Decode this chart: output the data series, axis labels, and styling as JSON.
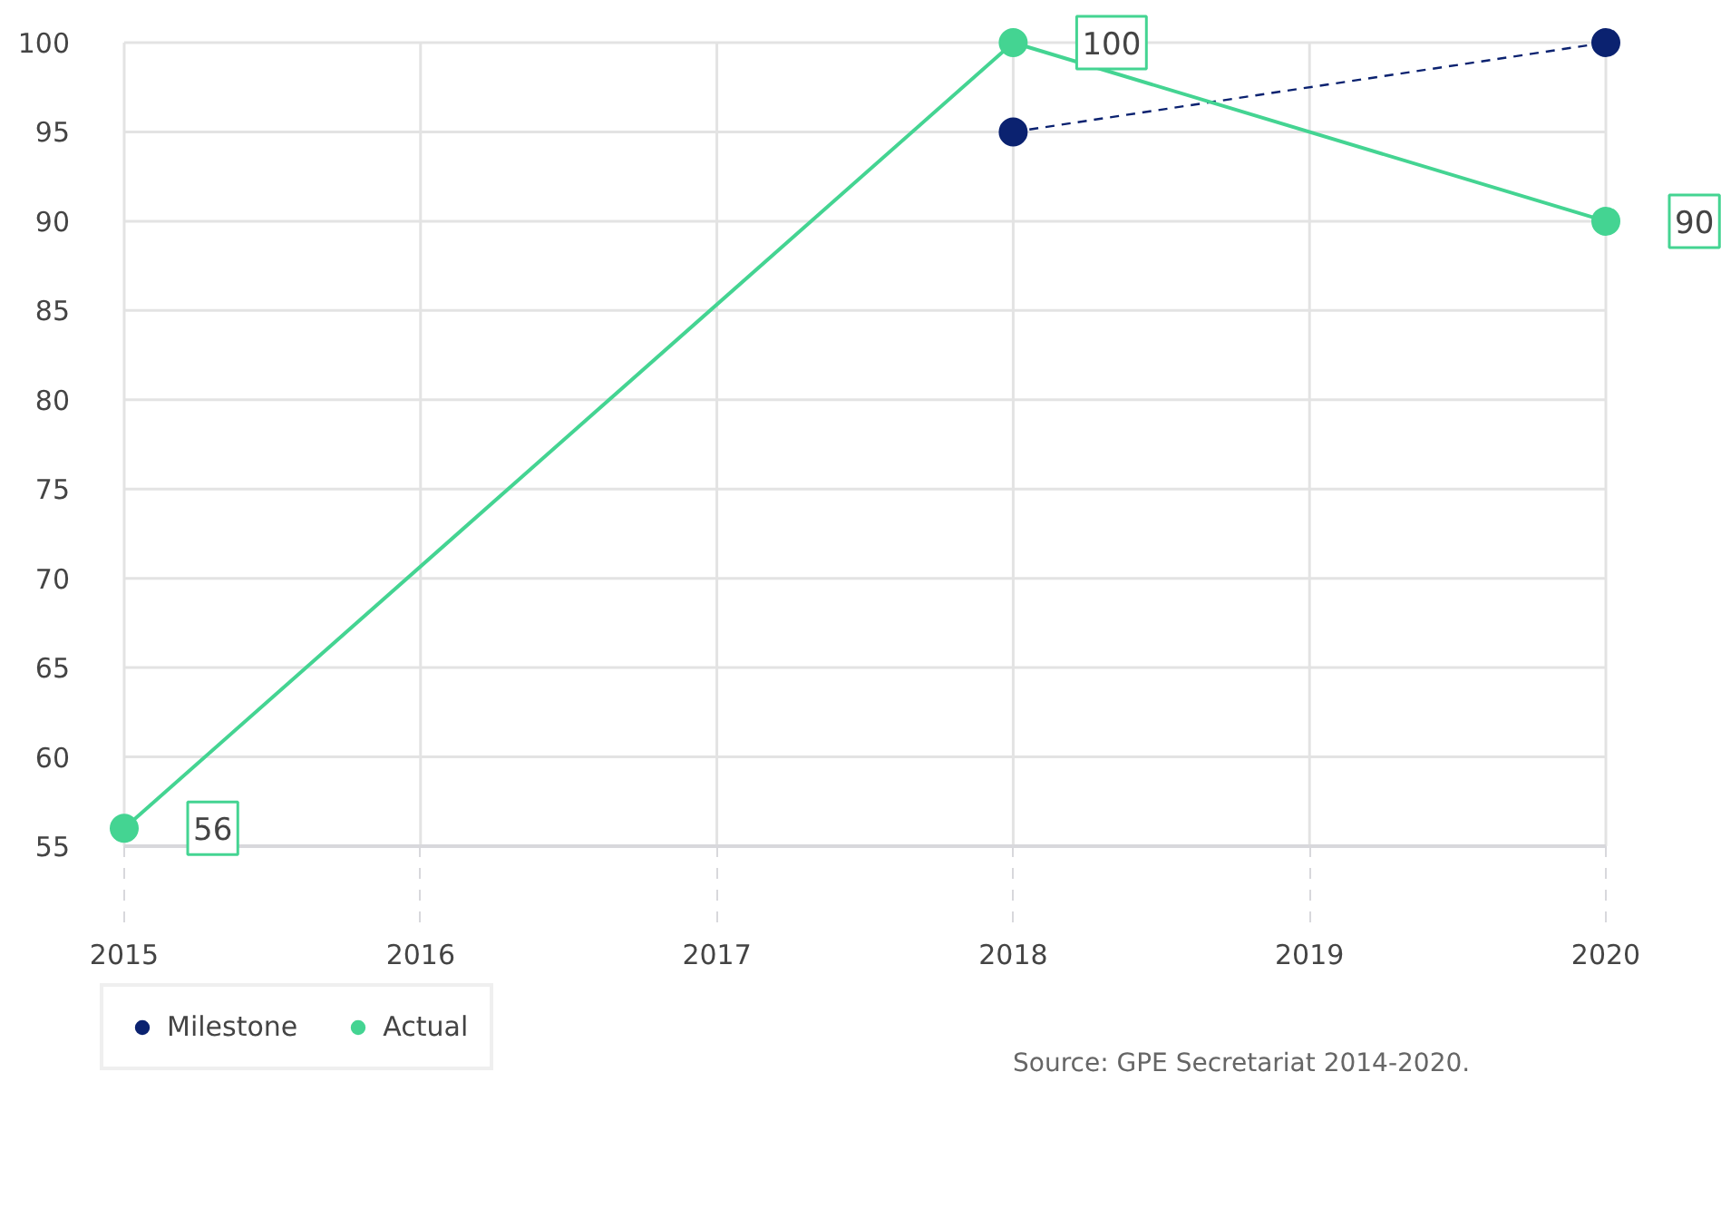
{
  "chart_data": {
    "type": "line",
    "xlim": [
      2015,
      2020
    ],
    "xticks": [
      2015,
      2016,
      2017,
      2018,
      2019,
      2020
    ],
    "ylim": [
      55,
      100
    ],
    "yticks": [
      55,
      60,
      65,
      70,
      75,
      80,
      85,
      90,
      95,
      100
    ],
    "grid": true,
    "legend": "bottom left",
    "marker": "circle",
    "series": [
      {
        "name": "Milestone",
        "color": "#0b2270",
        "line_style": "dashed",
        "x": [
          2018,
          2020
        ],
        "values": [
          95,
          100
        ]
      },
      {
        "name": "Actual",
        "color": "#44d492",
        "line_style": "solid",
        "x": [
          2015,
          2018,
          2020
        ],
        "values": [
          56,
          100,
          90
        ],
        "value_labels": [
          "56",
          "100",
          "90"
        ]
      }
    ],
    "annotations": [
      "Source: GPE Secretariat 2014-2020."
    ]
  }
}
